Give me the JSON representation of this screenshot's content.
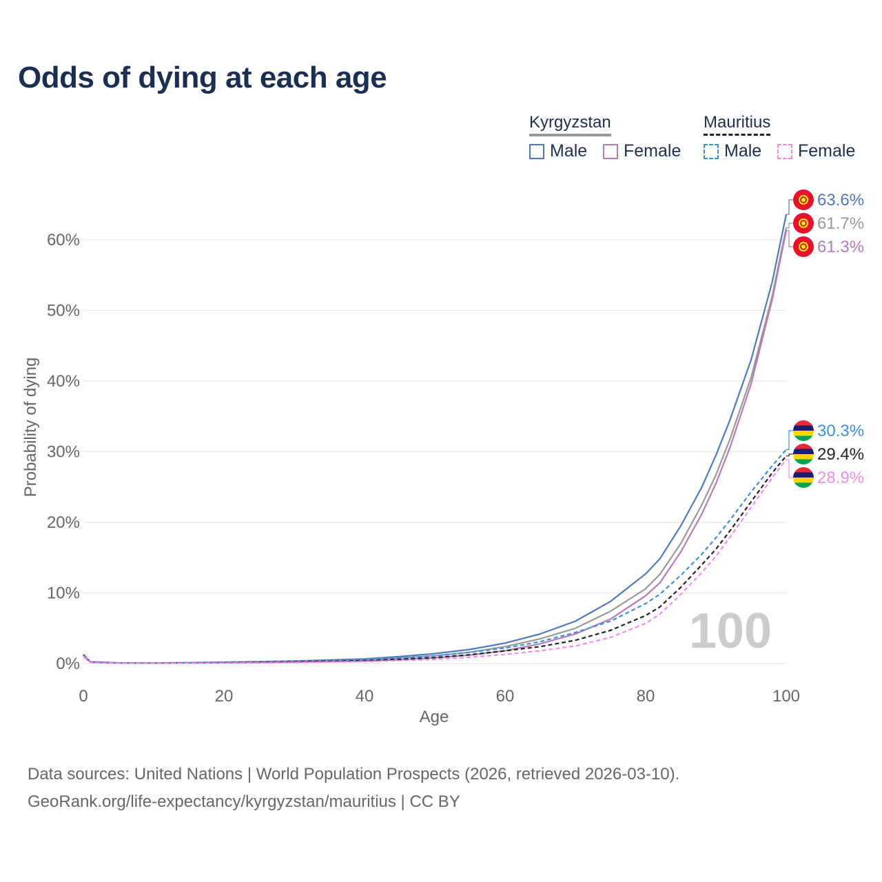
{
  "title": "Odds of dying at each age",
  "legend": {
    "groups": [
      {
        "name": "Kyrgyzstan",
        "underline_color": "#999999",
        "underline_style": "solid",
        "items": [
          {
            "label": "Male",
            "color": "#4e79c1",
            "style": "solid"
          },
          {
            "label": "Female",
            "color": "#b67ab8",
            "style": "solid"
          }
        ]
      },
      {
        "name": "Mauritius",
        "underline_color": "#222222",
        "underline_style": "dashed",
        "items": [
          {
            "label": "Male",
            "color": "#3d8fe3",
            "style": "dashed"
          },
          {
            "label": "Female",
            "color": "#f38cf0",
            "style": "dashed"
          }
        ]
      }
    ]
  },
  "chart_data": {
    "type": "line",
    "title": "Odds of dying at each age",
    "xlabel": "Age",
    "ylabel": "Probability of dying",
    "xlim": [
      0,
      100
    ],
    "ylim": [
      0,
      65
    ],
    "x_ticks": [
      "0",
      "20",
      "40",
      "60",
      "80",
      "100"
    ],
    "y_ticks": [
      "0%",
      "10%",
      "20%",
      "30%",
      "40%",
      "50%",
      "60%"
    ],
    "x_tick_values": [
      0,
      20,
      40,
      60,
      80,
      100
    ],
    "y_tick_values": [
      0,
      10,
      20,
      30,
      40,
      50,
      60
    ],
    "grid": true,
    "watermark": "100",
    "x": [
      0,
      1,
      5,
      10,
      20,
      30,
      40,
      45,
      50,
      55,
      60,
      65,
      70,
      75,
      80,
      82,
      85,
      88,
      90,
      92,
      95,
      98,
      100
    ],
    "series": [
      {
        "name": "Kyrgyzstan Male",
        "country": "Kyrgyzstan",
        "sex": "Male",
        "color": "#4e79c1",
        "dash": false,
        "end_label": "63.6%",
        "values": [
          1.2,
          0.25,
          0.1,
          0.08,
          0.2,
          0.35,
          0.65,
          1.0,
          1.4,
          2.0,
          2.9,
          4.2,
          6.0,
          8.8,
          12.7,
          14.8,
          19.5,
          25.0,
          29.5,
          34.5,
          43.0,
          54.0,
          63.6
        ]
      },
      {
        "name": "Kyrgyzstan Total",
        "country": "Kyrgyzstan",
        "sex": "Total",
        "color": "#999999",
        "dash": false,
        "end_label": "61.7%",
        "values": [
          1.1,
          0.22,
          0.09,
          0.07,
          0.17,
          0.28,
          0.5,
          0.8,
          1.1,
          1.6,
          2.4,
          3.5,
          5.0,
          7.4,
          10.6,
          12.6,
          17.0,
          22.5,
          26.7,
          31.8,
          40.5,
          52.0,
          61.7
        ]
      },
      {
        "name": "Kyrgyzstan Female",
        "country": "Kyrgyzstan",
        "sex": "Female",
        "color": "#b67ab8",
        "dash": false,
        "end_label": "61.3%",
        "values": [
          1.0,
          0.2,
          0.08,
          0.06,
          0.12,
          0.2,
          0.35,
          0.55,
          0.8,
          1.2,
          1.8,
          2.8,
          4.2,
          6.3,
          9.6,
          11.4,
          15.8,
          21.2,
          25.5,
          30.6,
          39.6,
          51.5,
          61.3
        ]
      },
      {
        "name": "Mauritius Male",
        "country": "Mauritius",
        "sex": "Male",
        "color": "#3d8fe3",
        "dash": true,
        "end_label": "30.3%",
        "values": [
          1.3,
          0.2,
          0.08,
          0.06,
          0.15,
          0.3,
          0.5,
          0.75,
          1.1,
          1.6,
          2.2,
          3.1,
          4.4,
          6.0,
          8.5,
          9.8,
          12.5,
          15.5,
          17.8,
          20.3,
          24.3,
          28.0,
          30.3
        ]
      },
      {
        "name": "Mauritius Total",
        "country": "Mauritius",
        "sex": "Total",
        "color": "#222222",
        "dash": true,
        "end_label": "29.4%",
        "values": [
          1.2,
          0.18,
          0.07,
          0.05,
          0.12,
          0.24,
          0.4,
          0.6,
          0.85,
          1.25,
          1.8,
          2.4,
          3.3,
          4.7,
          6.8,
          8.0,
          10.8,
          14.0,
          16.2,
          18.8,
          22.9,
          27.0,
          29.4
        ]
      },
      {
        "name": "Mauritius Female",
        "country": "Mauritius",
        "sex": "Female",
        "color": "#f38cf0",
        "dash": true,
        "end_label": "28.9%",
        "values": [
          1.1,
          0.16,
          0.06,
          0.04,
          0.08,
          0.16,
          0.28,
          0.42,
          0.6,
          0.9,
          1.3,
          1.8,
          2.5,
          3.7,
          5.7,
          7.0,
          9.8,
          12.9,
          15.2,
          17.9,
          22.1,
          26.3,
          28.9
        ]
      }
    ]
  },
  "footer": {
    "line1": "Data sources: United Nations | World Population Prospects (2026, retrieved 2026-03-10).",
    "line2": "GeoRank.org/life-expectancy/kyrgyzstan/mauritius | CC BY"
  }
}
